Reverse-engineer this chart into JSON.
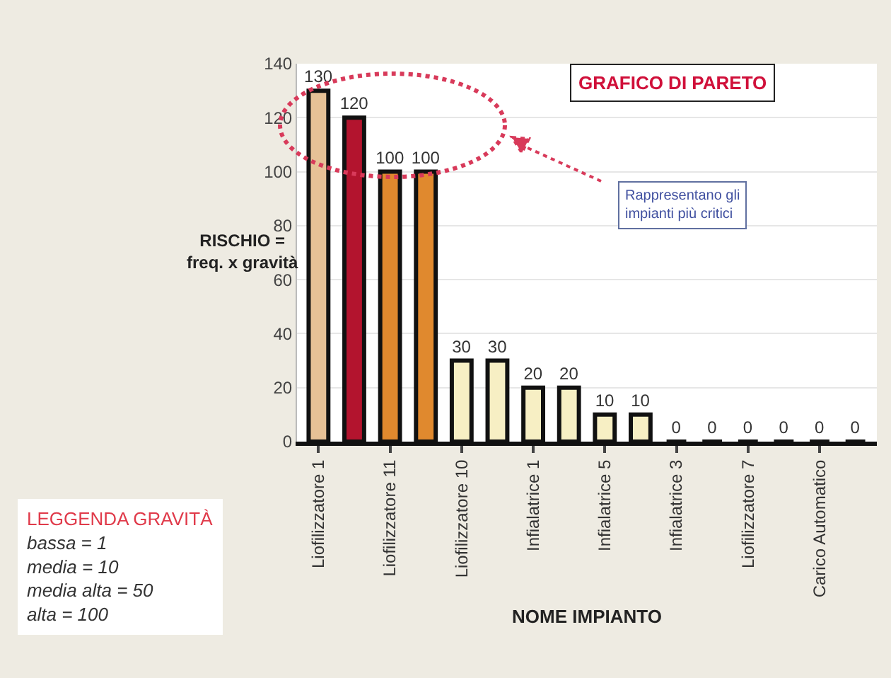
{
  "chart_data": {
    "type": "bar",
    "title": "GRAFICO DI PARETO",
    "xlabel": "NOME IMPIANTO",
    "ylabel": "RISCHIO =\nfreq. x gravità",
    "categories": [
      "Liofilizzatore 1",
      null,
      "Liofilizzatore 11",
      null,
      "Liofilizzatore 10",
      null,
      "Infialatrice 1",
      null,
      "Infialatrice 5",
      null,
      "Infialatrice 3",
      null,
      "Liofilizzatore 7",
      null,
      "Carico Automatico",
      null
    ],
    "values": [
      130,
      120,
      100,
      100,
      30,
      30,
      20,
      20,
      10,
      10,
      0,
      0,
      0,
      0,
      0,
      0
    ],
    "colors": [
      "#e6c196",
      "#b3142e",
      "#e0892e",
      "#e0892e",
      "#f7efc4",
      "#f7efc4",
      "#f7efc4",
      "#f7efc4",
      "#f7efc4",
      "#f7efc4",
      "#111111",
      "#111111",
      "#111111",
      "#111111",
      "#111111",
      "#111111"
    ],
    "ylim": [
      0,
      140
    ],
    "yticks": [
      0,
      20,
      40,
      60,
      80,
      100,
      120,
      140
    ],
    "grid": "y",
    "data_labels": true,
    "annotations": [
      "Rappresentano gli\nimpianti più critici",
      "LEGGENDA GRAVITÀ\nbassa = 1\nmedia = 10\nmedia alta = 50\nalta = 100"
    ]
  }
}
